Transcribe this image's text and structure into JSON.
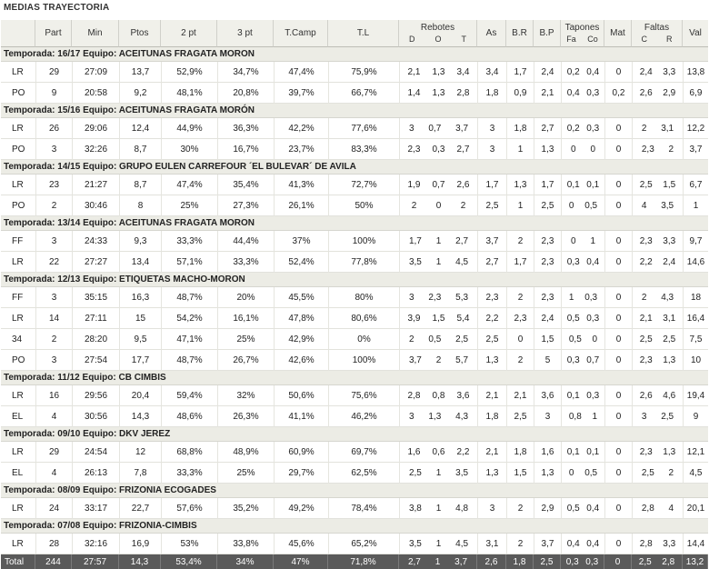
{
  "title": "MEDIAS TRAYECTORIA",
  "columns": [
    "",
    "Part",
    "Min",
    "Ptos",
    "2 pt",
    "3 pt",
    "T.Camp",
    "T.L",
    "Rebotes",
    "As",
    "B.R",
    "B.P",
    "Tapones",
    "Mat",
    "Faltas",
    "Val"
  ],
  "sub_rebotes": [
    "D",
    "O",
    "T"
  ],
  "sub_tapones": [
    "Fa",
    "Co"
  ],
  "sub_faltas": [
    "C",
    "R"
  ],
  "seasons": [
    {
      "label": "Temporada: 16/17 Equipo: ACEITUNAS FRAGATA MORON",
      "rows": [
        [
          "LR",
          "29",
          "27:09",
          "13,7",
          "52,9%",
          "34,7%",
          "47,4%",
          "75,9%",
          "2,1",
          "1,3",
          "3,4",
          "3,4",
          "1,7",
          "2,4",
          "0,2",
          "0,4",
          "0",
          "2,4",
          "3,3",
          "13,8"
        ],
        [
          "PO",
          "9",
          "20:58",
          "9,2",
          "48,1%",
          "20,8%",
          "39,7%",
          "66,7%",
          "1,4",
          "1,3",
          "2,8",
          "1,8",
          "0,9",
          "2,1",
          "0,4",
          "0,3",
          "0,2",
          "2,6",
          "2,9",
          "6,9"
        ]
      ]
    },
    {
      "label": "Temporada: 15/16 Equipo: ACEITUNAS FRAGATA MORÓN",
      "rows": [
        [
          "LR",
          "26",
          "29:06",
          "12,4",
          "44,9%",
          "36,3%",
          "42,2%",
          "77,6%",
          "3",
          "0,7",
          "3,7",
          "3",
          "1,8",
          "2,7",
          "0,2",
          "0,3",
          "0",
          "2",
          "3,1",
          "12,2"
        ],
        [
          "PO",
          "3",
          "32:26",
          "8,7",
          "30%",
          "16,7%",
          "23,7%",
          "83,3%",
          "2,3",
          "0,3",
          "2,7",
          "3",
          "1",
          "1,3",
          "0",
          "0",
          "0",
          "2,3",
          "2",
          "3,7"
        ]
      ]
    },
    {
      "label": "Temporada: 14/15 Equipo: GRUPO EULEN CARREFOUR ´EL BULEVAR´ DE AVILA",
      "rows": [
        [
          "LR",
          "23",
          "21:27",
          "8,7",
          "47,4%",
          "35,4%",
          "41,3%",
          "72,7%",
          "1,9",
          "0,7",
          "2,6",
          "1,7",
          "1,3",
          "1,7",
          "0,1",
          "0,1",
          "0",
          "2,5",
          "1,5",
          "6,7"
        ],
        [
          "PO",
          "2",
          "30:46",
          "8",
          "25%",
          "27,3%",
          "26,1%",
          "50%",
          "2",
          "0",
          "2",
          "2,5",
          "1",
          "2,5",
          "0",
          "0,5",
          "0",
          "4",
          "3,5",
          "1"
        ]
      ]
    },
    {
      "label": "Temporada: 13/14 Equipo: ACEITUNAS FRAGATA MORON",
      "rows": [
        [
          "FF",
          "3",
          "24:33",
          "9,3",
          "33,3%",
          "44,4%",
          "37%",
          "100%",
          "1,7",
          "1",
          "2,7",
          "3,7",
          "2",
          "2,3",
          "0",
          "1",
          "0",
          "2,3",
          "3,3",
          "9,7"
        ],
        [
          "LR",
          "22",
          "27:27",
          "13,4",
          "57,1%",
          "33,3%",
          "52,4%",
          "77,8%",
          "3,5",
          "1",
          "4,5",
          "2,7",
          "1,7",
          "2,3",
          "0,3",
          "0,4",
          "0",
          "2,2",
          "2,4",
          "14,6"
        ]
      ]
    },
    {
      "label": "Temporada: 12/13 Equipo: ETIQUETAS MACHO-MORON",
      "rows": [
        [
          "FF",
          "3",
          "35:15",
          "16,3",
          "48,7%",
          "20%",
          "45,5%",
          "80%",
          "3",
          "2,3",
          "5,3",
          "2,3",
          "2",
          "2,3",
          "1",
          "0,3",
          "0",
          "2",
          "4,3",
          "18"
        ],
        [
          "LR",
          "14",
          "27:11",
          "15",
          "54,2%",
          "16,1%",
          "47,8%",
          "80,6%",
          "3,9",
          "1,5",
          "5,4",
          "2,2",
          "2,3",
          "2,4",
          "0,5",
          "0,3",
          "0",
          "2,1",
          "3,1",
          "16,4"
        ],
        [
          "34",
          "2",
          "28:20",
          "9,5",
          "47,1%",
          "25%",
          "42,9%",
          "0%",
          "2",
          "0,5",
          "2,5",
          "2,5",
          "0",
          "1,5",
          "0,5",
          "0",
          "0",
          "2,5",
          "2,5",
          "7,5"
        ],
        [
          "PO",
          "3",
          "27:54",
          "17,7",
          "48,7%",
          "26,7%",
          "42,6%",
          "100%",
          "3,7",
          "2",
          "5,7",
          "1,3",
          "2",
          "5",
          "0,3",
          "0,7",
          "0",
          "2,3",
          "1,3",
          "10"
        ]
      ]
    },
    {
      "label": "Temporada: 11/12 Equipo: CB CIMBIS",
      "rows": [
        [
          "LR",
          "16",
          "29:56",
          "20,4",
          "59,4%",
          "32%",
          "50,6%",
          "75,6%",
          "2,8",
          "0,8",
          "3,6",
          "2,1",
          "2,1",
          "3,6",
          "0,1",
          "0,3",
          "0",
          "2,6",
          "4,6",
          "19,4"
        ],
        [
          "EL",
          "4",
          "30:56",
          "14,3",
          "48,6%",
          "26,3%",
          "41,1%",
          "46,2%",
          "3",
          "1,3",
          "4,3",
          "1,8",
          "2,5",
          "3",
          "0,8",
          "1",
          "0",
          "3",
          "2,5",
          "9"
        ]
      ]
    },
    {
      "label": "Temporada: 09/10 Equipo: DKV JEREZ",
      "rows": [
        [
          "LR",
          "29",
          "24:54",
          "12",
          "68,8%",
          "48,9%",
          "60,9%",
          "69,7%",
          "1,6",
          "0,6",
          "2,2",
          "2,1",
          "1,8",
          "1,6",
          "0,1",
          "0,1",
          "0",
          "2,3",
          "1,3",
          "12,1"
        ],
        [
          "EL",
          "4",
          "26:13",
          "7,8",
          "33,3%",
          "25%",
          "29,7%",
          "62,5%",
          "2,5",
          "1",
          "3,5",
          "1,3",
          "1,5",
          "1,3",
          "0",
          "0,5",
          "0",
          "2,5",
          "2",
          "4,5"
        ]
      ]
    },
    {
      "label": "Temporada: 08/09 Equipo: FRIZONIA ECOGADES",
      "rows": [
        [
          "LR",
          "24",
          "33:17",
          "22,7",
          "57,6%",
          "35,2%",
          "49,2%",
          "78,4%",
          "3,8",
          "1",
          "4,8",
          "3",
          "2",
          "2,9",
          "0,5",
          "0,4",
          "0",
          "2,8",
          "4",
          "20,1"
        ]
      ]
    },
    {
      "label": "Temporada: 07/08 Equipo: FRIZONIA-CIMBIS",
      "rows": [
        [
          "LR",
          "28",
          "32:16",
          "16,9",
          "53%",
          "33,8%",
          "45,6%",
          "65,2%",
          "3,5",
          "1",
          "4,5",
          "3,1",
          "2",
          "3,7",
          "0,4",
          "0,4",
          "0",
          "2,8",
          "3,3",
          "14,4"
        ]
      ]
    }
  ],
  "total": [
    "Total",
    "244",
    "27:57",
    "14,3",
    "53,4%",
    "34%",
    "47%",
    "71,8%",
    "2,7",
    "1",
    "3,7",
    "2,6",
    "1,8",
    "2,5",
    "0,3",
    "0,3",
    "0",
    "2,5",
    "2,8",
    "13,2"
  ]
}
